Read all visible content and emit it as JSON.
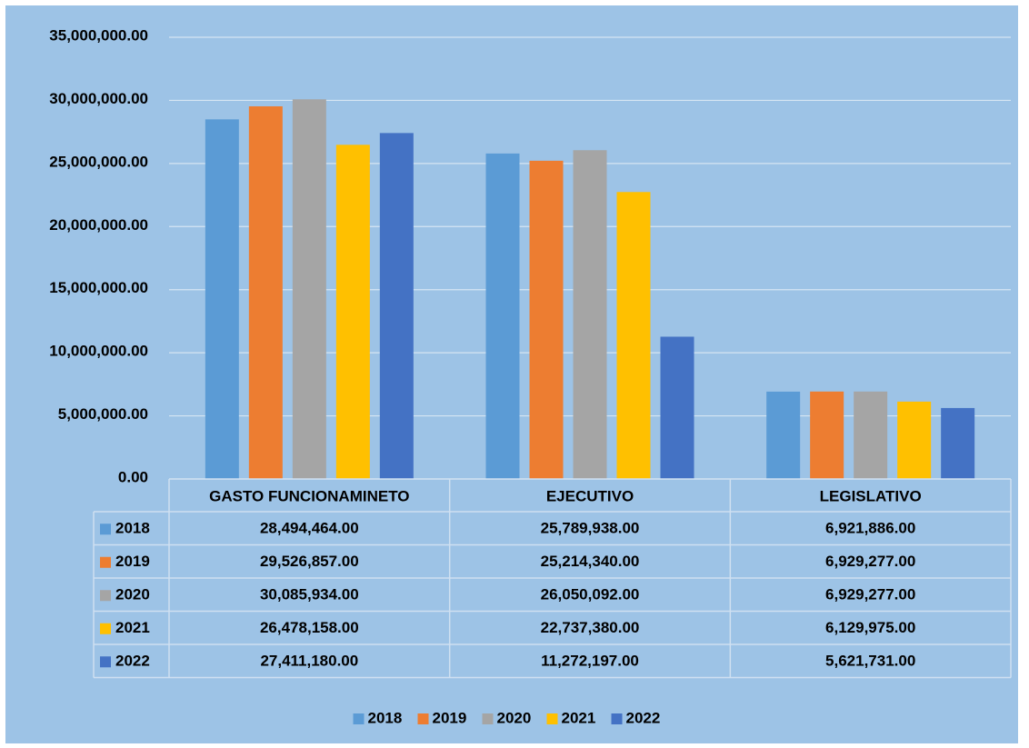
{
  "chart_data": {
    "type": "bar",
    "categories": [
      "GASTO FUNCIONAMINETO",
      "EJECUTIVO",
      "LEGISLATIVO"
    ],
    "series": [
      {
        "name": "2018",
        "color": "#5b9bd5",
        "values": [
          28494464,
          25789938,
          6921886
        ],
        "value_labels": [
          "28,494,464.00",
          "25,789,938.00",
          "6,921,886.00"
        ]
      },
      {
        "name": "2019",
        "color": "#ed7d31",
        "values": [
          29526857,
          25214340,
          6929277
        ],
        "value_labels": [
          "29,526,857.00",
          "25,214,340.00",
          "6,929,277.00"
        ]
      },
      {
        "name": "2020",
        "color": "#a5a5a5",
        "values": [
          30085934,
          26050092,
          6929277
        ],
        "value_labels": [
          "30,085,934.00",
          "26,050,092.00",
          "6,929,277.00"
        ]
      },
      {
        "name": "2021",
        "color": "#ffc000",
        "values": [
          26478158,
          22737380,
          6129975
        ],
        "value_labels": [
          "26,478,158.00",
          "22,737,380.00",
          "6,129,975.00"
        ]
      },
      {
        "name": "2022",
        "color": "#4472c4",
        "values": [
          27411180,
          11272197,
          5621731
        ],
        "value_labels": [
          "27,411,180.00",
          "11,272,197.00",
          "5,621,731.00"
        ]
      }
    ],
    "ylim": [
      0,
      35000000
    ],
    "yticks": [
      {
        "value": 0,
        "label": "0.00"
      },
      {
        "value": 5000000,
        "label": "5,000,000.00"
      },
      {
        "value": 10000000,
        "label": "10,000,000.00"
      },
      {
        "value": 15000000,
        "label": "15,000,000.00"
      },
      {
        "value": 20000000,
        "label": "20,000,000.00"
      },
      {
        "value": 25000000,
        "label": "25,000,000.00"
      },
      {
        "value": 30000000,
        "label": "30,000,000.00"
      },
      {
        "value": 35000000,
        "label": "35,000,000.00"
      }
    ],
    "grid": true,
    "legend": "bottom"
  }
}
